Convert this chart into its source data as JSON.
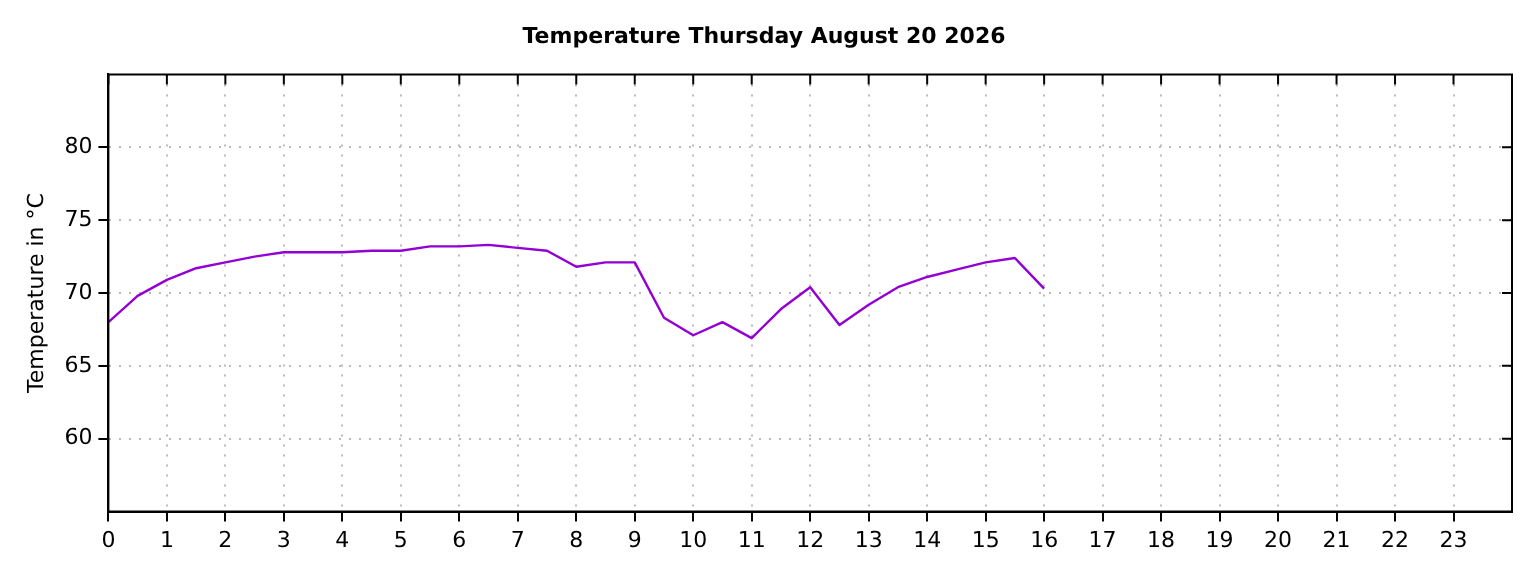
{
  "chart_data": {
    "type": "line",
    "title": "Temperature Thursday August 20 2026",
    "ylabel": "Temperature in °C",
    "x": [
      0,
      0.5,
      1,
      1.5,
      2,
      2.5,
      3,
      3.5,
      4,
      4.5,
      5,
      5.5,
      6,
      6.5,
      7,
      7.5,
      8,
      8.5,
      9,
      9.5,
      10,
      10.5,
      11,
      11.5,
      12,
      12.5,
      13,
      13.5,
      14,
      14.5,
      15,
      15.5,
      16
    ],
    "series": [
      {
        "color": "#9400d3",
        "values": [
          68.0,
          69.8,
          70.9,
          71.7,
          72.1,
          72.5,
          72.8,
          72.8,
          72.8,
          72.9,
          72.9,
          73.2,
          73.2,
          73.3,
          73.1,
          72.9,
          71.8,
          72.1,
          72.1,
          68.3,
          67.1,
          68.0,
          66.9,
          68.9,
          70.4,
          67.8,
          69.2,
          70.4,
          71.1,
          71.6,
          72.1,
          72.4,
          70.3
        ]
      }
    ],
    "xlim": [
      0,
      24
    ],
    "xticks": [
      0,
      1,
      2,
      3,
      4,
      5,
      6,
      7,
      8,
      9,
      10,
      11,
      12,
      13,
      14,
      15,
      16,
      17,
      18,
      19,
      20,
      21,
      22,
      23
    ],
    "ylim": [
      55,
      85
    ],
    "yticks": [
      60,
      65,
      70,
      75,
      80
    ],
    "grid": true,
    "legend": false,
    "marker": "none",
    "line_style": "solid"
  }
}
